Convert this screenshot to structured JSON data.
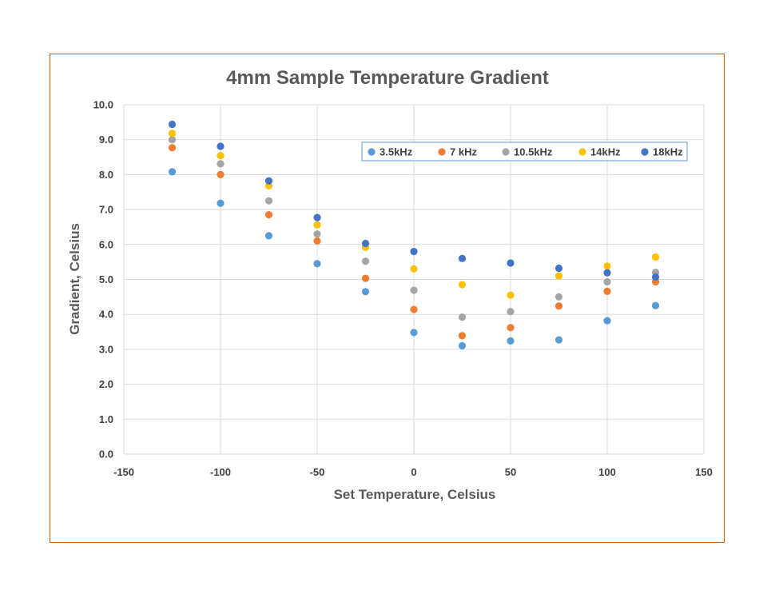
{
  "chart_data": {
    "type": "scatter",
    "title": "4mm Sample Temperature Gradient",
    "xlabel": "Set Temperature, Celsius",
    "ylabel": "Gradient, Celsius",
    "xlim": [
      -150,
      150
    ],
    "ylim": [
      0,
      10
    ],
    "xticks": [
      "-150",
      "-100",
      "-50",
      "0",
      "50",
      "100",
      "150"
    ],
    "yticks": [
      "0.0",
      "1.0",
      "2.0",
      "3.0",
      "4.0",
      "5.0",
      "6.0",
      "7.0",
      "8.0",
      "9.0",
      "10.0"
    ],
    "grid": true,
    "legend_position": "top-right",
    "x": [
      -125,
      -100,
      -75,
      -50,
      -25,
      0,
      25,
      50,
      75,
      100,
      125
    ],
    "series": [
      {
        "name": "3.5kHz",
        "color": "#5B9BD5",
        "values": [
          8.08,
          7.18,
          6.25,
          5.45,
          4.65,
          3.48,
          3.1,
          3.24,
          3.27,
          3.82,
          4.25
        ]
      },
      {
        "name": "7 kHz",
        "color": "#ED7D31",
        "values": [
          8.77,
          8.0,
          6.85,
          6.1,
          5.03,
          4.14,
          3.39,
          3.62,
          4.24,
          4.66,
          4.93
        ]
      },
      {
        "name": "10.5kHz",
        "color": "#A5A5A5",
        "values": [
          9.0,
          8.31,
          7.25,
          6.3,
          5.52,
          4.69,
          3.92,
          4.08,
          4.5,
          4.93,
          5.2
        ]
      },
      {
        "name": "14kHz",
        "color": "#FFC000",
        "values": [
          9.18,
          8.54,
          7.68,
          6.56,
          5.92,
          5.3,
          4.85,
          4.55,
          5.1,
          5.38,
          5.64
        ]
      },
      {
        "name": "18kHz",
        "color": "#4472C4",
        "values": [
          9.44,
          8.81,
          7.82,
          6.77,
          6.03,
          5.8,
          5.6,
          5.47,
          5.32,
          5.19,
          5.07
        ]
      }
    ]
  }
}
